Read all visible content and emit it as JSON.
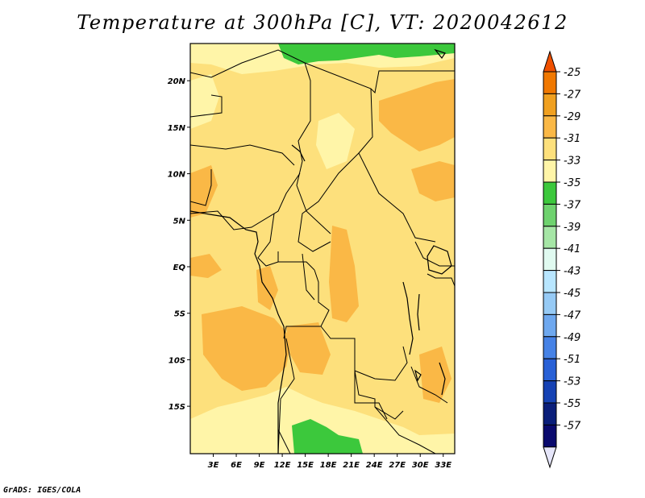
{
  "title": "Temperature at 300hPa [C], VT: 2020042612",
  "credit": "GrADS: IGES/COLA",
  "map": {
    "lon_range": [
      0,
      34.5
    ],
    "lat_range": [
      -20.1,
      24
    ],
    "lon_ticks": [
      "3E",
      "6E",
      "9E",
      "12E",
      "15E",
      "18E",
      "21E",
      "24E",
      "27E",
      "30E",
      "33E"
    ],
    "lat_ticks": [
      "20N",
      "15N",
      "10N",
      "5N",
      "EQ",
      "5S",
      "10S",
      "15S"
    ],
    "background_color": "#fde07c"
  },
  "colorbar": {
    "labels": [
      "-25",
      "-27",
      "-29",
      "-31",
      "-33",
      "-35",
      "-37",
      "-39",
      "-41",
      "-43",
      "-45",
      "-47",
      "-49",
      "-51",
      "-53",
      "-55",
      "-57"
    ],
    "colors": [
      "#f05000",
      "#f07800",
      "#f0a020",
      "#fab846",
      "#fde07c",
      "#fff5a8",
      "#3cc83c",
      "#6ed26e",
      "#a6e6a6",
      "#e0faf0",
      "#b8e6ff",
      "#96caf5",
      "#6ea8ef",
      "#4682e6",
      "#2860d6",
      "#1642b4",
      "#0a1e7a",
      "#0a0a6e",
      "#e6e6fa"
    ]
  }
}
